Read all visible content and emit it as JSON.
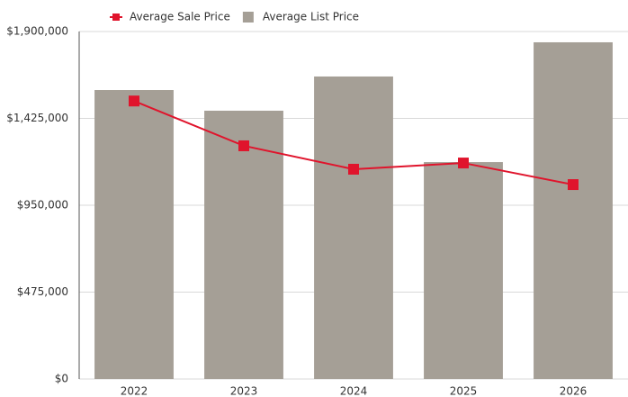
{
  "chart_data": {
    "type": "bar",
    "categories": [
      "2022",
      "2023",
      "2024",
      "2025",
      "2026"
    ],
    "series": [
      {
        "name": "Average Sale Price",
        "type": "line",
        "color": "#e0142c",
        "values": [
          1520000,
          1275000,
          1147000,
          1181000,
          1063000
        ]
      },
      {
        "name": "Average List Price",
        "type": "bar",
        "color": "#a59f96",
        "values": [
          1580000,
          1467000,
          1654000,
          1186000,
          1841000
        ]
      }
    ],
    "ylim": [
      0,
      1900000
    ],
    "yticks": [
      {
        "value": 0,
        "label": "$0"
      },
      {
        "value": 475000,
        "label": "$475,000"
      },
      {
        "value": 950000,
        "label": "$950,000"
      },
      {
        "value": 1425000,
        "label": "$1,425,000"
      },
      {
        "value": 1900000,
        "label": "$1,900,000"
      }
    ],
    "grid": true,
    "legend": "top"
  }
}
